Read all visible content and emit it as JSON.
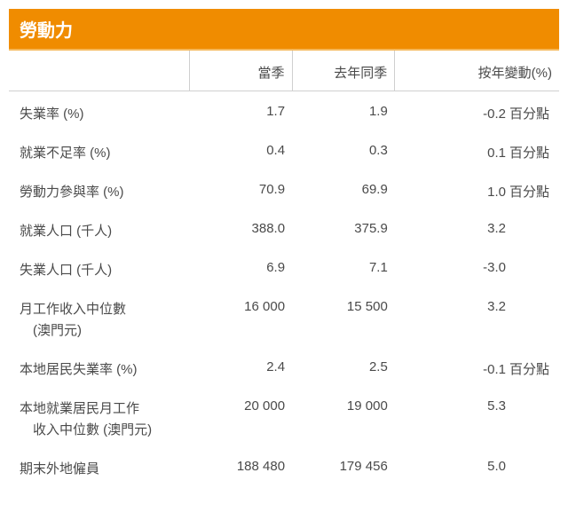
{
  "title": "勞動力",
  "columns": {
    "label": "",
    "current": "當季",
    "previous": "去年同季",
    "change": "按年變動(%)"
  },
  "unit_pp": "百分點",
  "rows": [
    {
      "label": "失業率 (%)",
      "current": "1.7",
      "previous": "1.9",
      "change": "-0.2",
      "pp": true
    },
    {
      "label": "就業不足率 (%)",
      "current": "0.4",
      "previous": "0.3",
      "change": "0.1",
      "pp": true
    },
    {
      "label": "勞動力參與率 (%)",
      "current": "70.9",
      "previous": "69.9",
      "change": "1.0",
      "pp": true
    },
    {
      "label": "就業人口 (千人)",
      "current": "388.0",
      "previous": "375.9",
      "change": "3.2",
      "pp": false
    },
    {
      "label": "失業人口 (千人)",
      "current": "6.9",
      "previous": "7.1",
      "change": "-3.0",
      "pp": false
    },
    {
      "label": "月工作收入中位數\n　(澳門元)",
      "current": "16 000",
      "previous": "15 500",
      "change": "3.2",
      "pp": false
    },
    {
      "label": "本地居民失業率 (%)",
      "current": "2.4",
      "previous": "2.5",
      "change": "-0.1",
      "pp": true
    },
    {
      "label": "本地就業居民月工作\n　收入中位數 (澳門元)",
      "current": "20 000",
      "previous": "19 000",
      "change": "5.3",
      "pp": false
    },
    {
      "label": "期末外地僱員",
      "current": "188 480",
      "previous": "179 456",
      "change": "5.0",
      "pp": false
    }
  ]
}
